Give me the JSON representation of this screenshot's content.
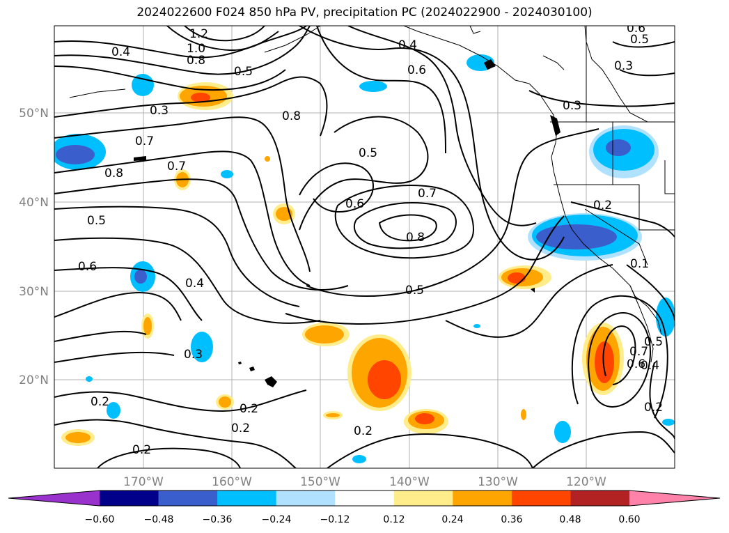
{
  "title": "2024022600 F024 850 hPa PV, precipitation PC (2024022900 - 2024030100)",
  "map": {
    "lat_labels": [
      "50°N",
      "40°N",
      "30°N",
      "20°N"
    ],
    "lon_labels": [
      "170°W",
      "160°W",
      "150°W",
      "140°W",
      "130°W",
      "120°W"
    ],
    "contour_labels": [
      "1.2",
      "1.0",
      "0.8",
      "0.4",
      "0.5",
      "0.4",
      "0.6",
      "0.6",
      "0.5",
      "0.3",
      "0.3",
      "0.3",
      "0.8",
      "0.7",
      "0.7",
      "0.8",
      "0.5",
      "0.5",
      "0.6",
      "0.7",
      "0.8",
      "0.2",
      "0.6",
      "0.4",
      "0.5",
      "0.1",
      "0.3",
      "0.2",
      "0.2",
      "0.2",
      "0.2",
      "0.2",
      "0.7",
      "0.6",
      "0.4",
      "0.5",
      "0.2"
    ]
  },
  "colorbar": {
    "colors": [
      "#9932cc",
      "#00008b",
      "#3a5fcd",
      "#00bfff",
      "#b0e2ff",
      "#ffffff",
      "#ffec8b",
      "#ffa500",
      "#ff4500",
      "#b22222",
      "#ff82ab"
    ],
    "ticks": [
      "−0.60",
      "−0.48",
      "−0.36",
      "−0.24",
      "−0.12",
      "0.12",
      "0.24",
      "0.36",
      "0.48",
      "0.60"
    ]
  }
}
